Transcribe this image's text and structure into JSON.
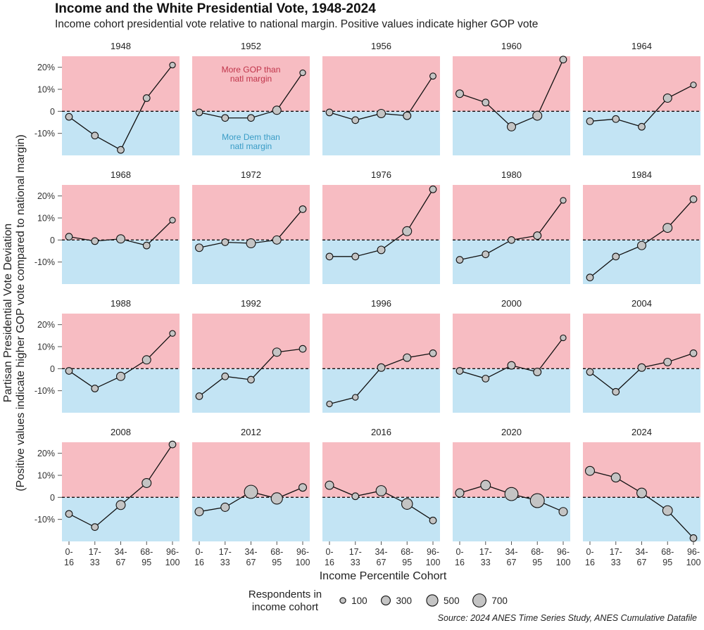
{
  "title": "Income and the White Presidential Vote, 1948-2024",
  "subtitle": "Income cohort presidential vote relative to national margin. Positive values indicate higher GOP vote",
  "source": "Source: 2024 ANES Time Series Study, ANES Cumulative Datafile",
  "colors": {
    "gop": "#f7bcc2",
    "dem": "#c3e4f4",
    "point": "#c4c4c4",
    "gop_text": "#c0344a",
    "dem_text": "#3a9cc6"
  },
  "chart_data": {
    "type": "line",
    "xlabel": "Income Percentile Cohort",
    "ylabel_line1": "Partisan Presidential Vote Deviation",
    "ylabel_line2": "(Positive values indicate higher GOP vote compared to national margin)",
    "categories": [
      [
        "0-",
        "16"
      ],
      [
        "17-",
        "33"
      ],
      [
        "34-",
        "67"
      ],
      [
        "68-",
        "95"
      ],
      [
        "96-",
        "100"
      ]
    ],
    "ylim": [
      -20,
      25
    ],
    "yticks": [
      -10,
      0,
      10,
      20
    ],
    "ytick_labels": [
      "-10%",
      "0",
      "10%",
      "20%"
    ],
    "reference_line": 0,
    "annotations": {
      "gop": [
        "More GOP than",
        "natl margin"
      ],
      "dem": [
        "More Dem than",
        "natl margin"
      ],
      "panel": "1952"
    },
    "size_legend": {
      "title": [
        "Respondents in",
        "income cohort"
      ],
      "values": [
        100,
        300,
        500,
        700
      ]
    },
    "panels": [
      {
        "year": "1948",
        "values": [
          -2.5,
          -11,
          -17.5,
          6,
          21
        ],
        "n": [
          150,
          150,
          150,
          150,
          100
        ]
      },
      {
        "year": "1952",
        "values": [
          -0.5,
          -3,
          -3,
          0.5,
          17.5
        ],
        "n": [
          150,
          150,
          150,
          250,
          100
        ]
      },
      {
        "year": "1956",
        "values": [
          -0.5,
          -4,
          -1,
          -2,
          16
        ],
        "n": [
          150,
          150,
          250,
          200,
          120
        ]
      },
      {
        "year": "1960",
        "values": [
          8,
          4,
          -7,
          -2,
          23.5
        ],
        "n": [
          200,
          150,
          250,
          300,
          150
        ]
      },
      {
        "year": "1964",
        "values": [
          -4.5,
          -3.5,
          -7,
          6,
          12
        ],
        "n": [
          150,
          150,
          150,
          250,
          100
        ]
      },
      {
        "year": "1968",
        "values": [
          1.5,
          -0.5,
          0.5,
          -2.5,
          9
        ],
        "n": [
          150,
          150,
          250,
          150,
          100
        ]
      },
      {
        "year": "1972",
        "values": [
          -3.5,
          -1,
          -1.5,
          0,
          14
        ],
        "n": [
          200,
          150,
          300,
          250,
          150
        ]
      },
      {
        "year": "1976",
        "values": [
          -7.5,
          -7.5,
          -4.5,
          4,
          23
        ],
        "n": [
          150,
          150,
          200,
          300,
          150
        ]
      },
      {
        "year": "1980",
        "values": [
          -9,
          -6.5,
          0,
          2,
          18
        ],
        "n": [
          150,
          150,
          150,
          200,
          100
        ]
      },
      {
        "year": "1984",
        "values": [
          -17,
          -7.5,
          -2.5,
          5.5,
          18.5
        ],
        "n": [
          150,
          150,
          250,
          300,
          150
        ]
      },
      {
        "year": "1988",
        "values": [
          -1,
          -9,
          -3.5,
          4,
          16
        ],
        "n": [
          150,
          150,
          250,
          250,
          100
        ]
      },
      {
        "year": "1992",
        "values": [
          -12.5,
          -3.5,
          -5,
          7.5,
          9
        ],
        "n": [
          150,
          150,
          150,
          250,
          150
        ]
      },
      {
        "year": "1996",
        "values": [
          -16,
          -13,
          0.5,
          5,
          7
        ],
        "n": [
          100,
          100,
          200,
          200,
          150
        ]
      },
      {
        "year": "2000",
        "values": [
          -1,
          -4.5,
          1.5,
          -1.5,
          14
        ],
        "n": [
          150,
          150,
          200,
          200,
          100
        ]
      },
      {
        "year": "2004",
        "values": [
          -1.5,
          -10.5,
          0.5,
          3,
          7
        ],
        "n": [
          150,
          150,
          200,
          200,
          150
        ]
      },
      {
        "year": "2008",
        "values": [
          -7.5,
          -13.5,
          -3.5,
          6.5,
          24
        ],
        "n": [
          150,
          150,
          300,
          300,
          150
        ]
      },
      {
        "year": "2012",
        "values": [
          -6.5,
          -4.5,
          2.5,
          -0.5,
          4.5
        ],
        "n": [
          250,
          250,
          700,
          500,
          200
        ]
      },
      {
        "year": "2016",
        "values": [
          5.5,
          0.5,
          3,
          -3,
          -10.5
        ],
        "n": [
          250,
          150,
          400,
          450,
          150
        ]
      },
      {
        "year": "2020",
        "values": [
          2,
          5.5,
          1.5,
          -1.5,
          -6.5
        ],
        "n": [
          250,
          350,
          700,
          800,
          250
        ]
      },
      {
        "year": "2024",
        "values": [
          12,
          9,
          2,
          -6,
          -18.5
        ],
        "n": [
          300,
          300,
          350,
          350,
          150
        ]
      }
    ]
  }
}
